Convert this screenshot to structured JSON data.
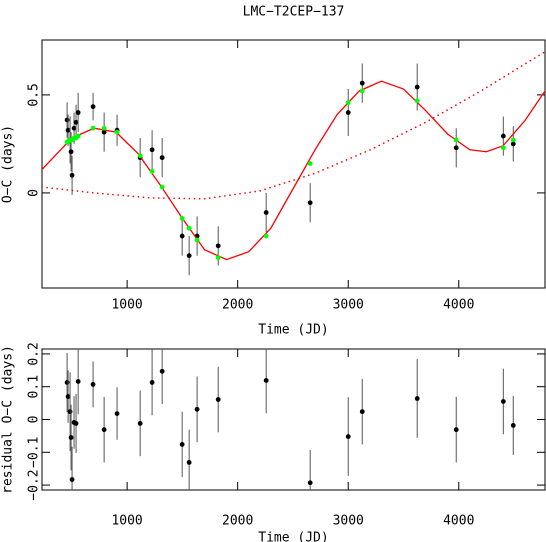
{
  "chart_data": [
    {
      "type": "scatter",
      "title": "LMC−T2CEP−137",
      "xlabel": "Time (JD)",
      "ylabel": "O−C (days)",
      "xlim": [
        230,
        4780
      ],
      "ylim": [
        -0.485,
        0.78
      ],
      "xticks": [
        1000,
        2000,
        3000,
        4000
      ],
      "yticks": [
        0,
        0.5
      ],
      "series": [
        {
          "color": "#000000",
          "marker": "dot",
          "x": [
            457,
            466,
            484,
            493,
            502,
            520,
            538,
            557,
            692,
            792,
            909,
            1118,
            1226,
            1317,
            1498,
            1561,
            1633,
            1824,
            2258,
            2656,
            3000,
            3127,
            3624,
            3977,
            4403,
            4493
          ],
          "values": [
            0.372,
            0.32,
            0.27,
            0.21,
            0.09,
            0.33,
            0.36,
            0.41,
            0.44,
            0.31,
            0.32,
            0.18,
            0.22,
            0.18,
            -0.22,
            -0.32,
            -0.22,
            -0.27,
            -0.1,
            -0.05,
            0.41,
            0.56,
            0.54,
            0.23,
            0.29,
            0.25
          ],
          "errors": [
            0.09,
            0.08,
            0.12,
            0.1,
            0.1,
            0.08,
            0.09,
            0.1,
            0.07,
            0.1,
            0.08,
            0.1,
            0.1,
            0.1,
            0.1,
            0.1,
            0.1,
            0.1,
            0.1,
            0.1,
            0.12,
            0.1,
            0.12,
            0.1,
            0.1,
            0.09
          ]
        },
        {
          "color": "#ff0000",
          "linestyle": "solid",
          "x": [
            230,
            500,
            700,
            900,
            1100,
            1300,
            1500,
            1700,
            1900,
            2100,
            2300,
            2500,
            2700,
            2900,
            3100,
            3300,
            3500,
            3700,
            3900,
            4100,
            4250,
            4400,
            4600,
            4780
          ],
          "values": [
            0.12,
            0.28,
            0.33,
            0.31,
            0.2,
            0.04,
            -0.13,
            -0.29,
            -0.34,
            -0.3,
            -0.18,
            0.02,
            0.22,
            0.4,
            0.52,
            0.57,
            0.53,
            0.42,
            0.3,
            0.22,
            0.21,
            0.24,
            0.37,
            0.52
          ]
        },
        {
          "color": "#ff0000",
          "linestyle": "dotted",
          "x": [
            230,
            700,
            1200,
            1700,
            2200,
            2700,
            3200,
            3700,
            4200,
            4780
          ],
          "values": [
            0.03,
            0.0,
            -0.025,
            -0.03,
            0.01,
            0.1,
            0.22,
            0.36,
            0.52,
            0.72
          ]
        },
        {
          "color": "#00ff00",
          "marker": "dot",
          "x": [
            457,
            466,
            484,
            493,
            502,
            520,
            538,
            557,
            692,
            792,
            909,
            1118,
            1226,
            1317,
            1498,
            1561,
            1633,
            1824,
            2258,
            2656,
            3000,
            3127,
            3624,
            3977,
            4403,
            4493
          ],
          "values": [
            0.26,
            0.26,
            0.27,
            0.27,
            0.27,
            0.28,
            0.28,
            0.29,
            0.33,
            0.33,
            0.31,
            0.19,
            0.11,
            0.03,
            -0.13,
            -0.18,
            -0.24,
            -0.33,
            -0.22,
            0.15,
            0.46,
            0.52,
            0.47,
            0.27,
            0.23,
            0.27
          ]
        }
      ]
    },
    {
      "type": "scatter",
      "xlabel": "Time (JD)",
      "ylabel": "residual O−C (days)",
      "xlim": [
        230,
        4780
      ],
      "ylim": [
        -0.215,
        0.215
      ],
      "xticks": [
        1000,
        2000,
        3000,
        4000
      ],
      "yticks": [
        {
          "value": -0.2,
          "label": "−0.2"
        },
        {
          "value": -0.1,
          "label": "−0.1"
        },
        0,
        0.1,
        0.2
      ],
      "series": [
        {
          "color": "#000000",
          "marker": "dot",
          "x": [
            457,
            466,
            484,
            493,
            502,
            520,
            538,
            557,
            692,
            792,
            909,
            1118,
            1226,
            1317,
            1498,
            1561,
            1633,
            1824,
            2258,
            2656,
            3000,
            3127,
            3624,
            3977,
            4403,
            4493
          ],
          "values": [
            0.113,
            0.07,
            0.024,
            -0.055,
            -0.183,
            -0.009,
            -0.012,
            0.116,
            0.107,
            -0.031,
            0.018,
            -0.012,
            0.113,
            0.147,
            -0.076,
            -0.131,
            0.031,
            0.061,
            0.119,
            -0.193,
            -0.052,
            0.024,
            0.064,
            -0.031,
            0.055,
            -0.018
          ],
          "errors": [
            0.09,
            0.08,
            0.12,
            0.1,
            0.1,
            0.08,
            0.09,
            0.1,
            0.07,
            0.1,
            0.08,
            0.1,
            0.1,
            0.1,
            0.1,
            0.1,
            0.1,
            0.1,
            0.1,
            0.1,
            0.12,
            0.1,
            0.12,
            0.1,
            0.1,
            0.09
          ]
        }
      ]
    }
  ]
}
